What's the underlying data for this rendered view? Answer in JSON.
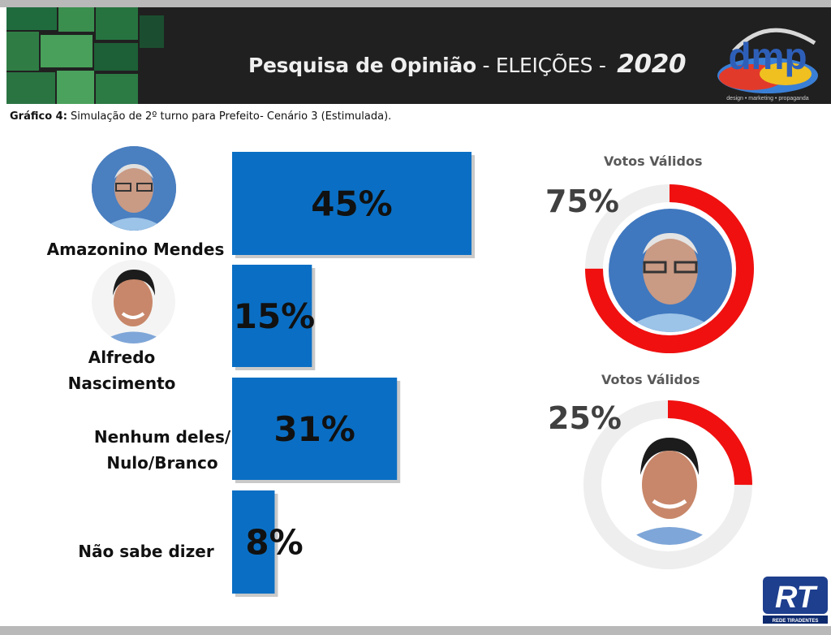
{
  "header": {
    "title": "Pesquisa de Opinião",
    "title_suffix": " - ELEIÇÕES - ",
    "year": "2020",
    "logo_text": "dmp",
    "logo_tagline": "design • marketing • propaganda"
  },
  "subtitle": {
    "label": "Gráfico 4:",
    "text": " Simulação de 2º turno para Prefeito- Cenário 3 (Estimulada)."
  },
  "candidates": [
    {
      "name": "Amazonino Mendes",
      "icon": "candidate-portrait"
    },
    {
      "name_line1": "Alfredo",
      "name_line2": "Nascimento",
      "icon": "candidate-portrait"
    }
  ],
  "other_labels": {
    "nenhum_line1": "Nenhum deles/",
    "nenhum_line2": "Nulo/Branco",
    "nao_sabe": "Não sabe dizer"
  },
  "chart_data": [
    {
      "type": "bar",
      "orientation": "horizontal",
      "categories": [
        "Amazonino Mendes",
        "Alfredo Nascimento",
        "Nenhum deles/ Nulo/Branco",
        "Não sabe dizer"
      ],
      "values": [
        45,
        15,
        31,
        8
      ],
      "labels": [
        "45%",
        "15%",
        "31%",
        "8%"
      ],
      "color": "#0a6fc4"
    },
    {
      "type": "pie",
      "variant": "donut",
      "title": "Votos Válidos",
      "values": [
        75,
        25
      ],
      "highlight_label": "75%",
      "colors": [
        "#f01010",
        "#eeeeee"
      ]
    },
    {
      "type": "pie",
      "variant": "donut",
      "title": "Votos Válidos",
      "values": [
        25,
        75
      ],
      "highlight_label": "25%",
      "colors": [
        "#f01010",
        "#eeeeee"
      ]
    }
  ],
  "footer_logo": {
    "text": "RT",
    "tagline": "REDE TIRADENTES"
  }
}
